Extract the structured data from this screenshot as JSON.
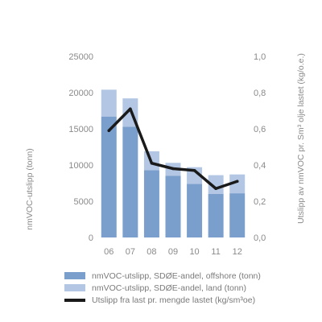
{
  "chart_data": {
    "type": "bar",
    "categories": [
      "06",
      "07",
      "08",
      "09",
      "10",
      "11",
      "12"
    ],
    "stacked": true,
    "series": [
      {
        "name": "nmVOC-utslipp, SDØE-andel, offshore (tonn)",
        "type": "bar",
        "axis": "left",
        "color": "#7b9fcd",
        "values": [
          16700,
          15300,
          9300,
          8500,
          7400,
          6000,
          6100
        ]
      },
      {
        "name": "nmVOC-utslipp, SDØE-andel, land (tonn)",
        "type": "bar",
        "axis": "left",
        "color": "#b3c7e4",
        "values": [
          3700,
          3900,
          2600,
          1800,
          2300,
          2600,
          2600
        ]
      },
      {
        "name": "Utslipp fra last pr. mengde lastet (kg/sm³oe)",
        "type": "line",
        "axis": "right",
        "color": "#1a1a1a",
        "values": [
          0.59,
          0.71,
          0.41,
          0.38,
          0.37,
          0.27,
          0.31
        ]
      }
    ],
    "ylabel_left": "nmVOC-utslipp (tonn)",
    "ylabel_right": "Utslipp av nmVOC pr. Sm³ olje lastet (kg/o.e.)",
    "ylim_left": [
      0,
      25000
    ],
    "ylim_right": [
      0,
      1.0
    ],
    "yticks_left": [
      "0",
      "5000",
      "10000",
      "15000",
      "20000",
      "25000"
    ],
    "yticks_right": [
      "0,0",
      "0,2",
      "0,4",
      "0,6",
      "0,8",
      "1,0"
    ],
    "grid": false,
    "legend_position": "bottom"
  }
}
